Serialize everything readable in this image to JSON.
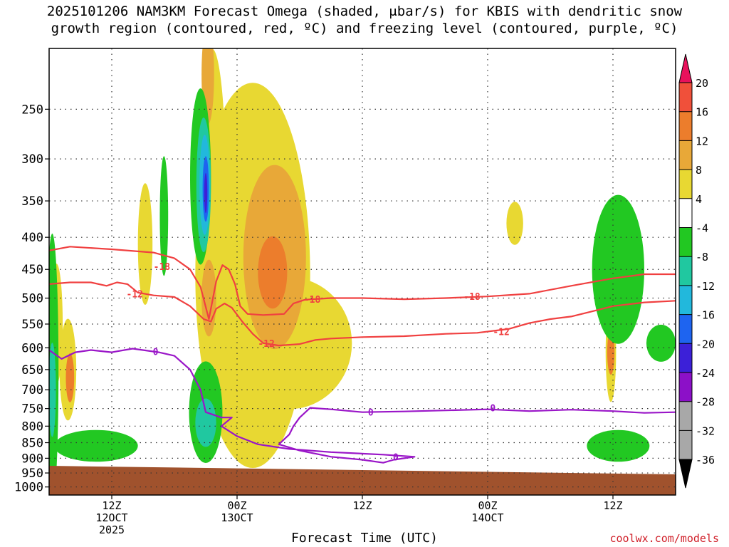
{
  "title": {
    "line1": "2025101206 NAM3KM Forecast Omega (shaded, μbar/s) for KBIS with dendritic snow",
    "line2": "growth region (contoured, red, ºC) and freezing level (contoured, purple, ºC)"
  },
  "credit": "coolwx.com/models",
  "chart_data": {
    "type": "heatmap",
    "xlabel": "Forecast Time (UTC)",
    "ylabel": "",
    "x_ticks": [
      {
        "hour": 6,
        "lines": [
          "12Z",
          "12OCT",
          "2025"
        ]
      },
      {
        "hour": 18,
        "lines": [
          "00Z",
          "13OCT"
        ]
      },
      {
        "hour": 30,
        "lines": [
          "12Z"
        ]
      },
      {
        "hour": 42,
        "lines": [
          "00Z",
          "14OCT"
        ]
      },
      {
        "hour": 54,
        "lines": [
          "12Z"
        ]
      }
    ],
    "xlim_hours": [
      0,
      60
    ],
    "y_scale": "log-pressure",
    "ylim_hPa": [
      1030,
      200
    ],
    "y_ticks": [
      250,
      300,
      350,
      400,
      450,
      500,
      550,
      600,
      650,
      700,
      750,
      800,
      850,
      900,
      950,
      1000
    ],
    "grid": true,
    "colorbar": {
      "labels": [
        "20",
        "16",
        "12",
        "8",
        "4",
        "-4",
        "-8",
        "-12",
        "-16",
        "-20",
        "-24",
        "-28",
        "-32",
        "-36"
      ],
      "colors": [
        "#e8115c",
        "#f0503a",
        "#ec7d2c",
        "#e8a838",
        "#e8d832",
        "#ffffff",
        "#22c822",
        "#20c8a0",
        "#22b8dc",
        "#1e64f0",
        "#3c20d8",
        "#8c10c8",
        "#a8a8a8",
        "#000000"
      ]
    },
    "omega_regions": [
      {
        "level": 4,
        "color": "#e8d832",
        "hour": 15.6,
        "p": 320,
        "rh": 1.3,
        "rp": 140
      },
      {
        "level": 4,
        "color": "#e8d832",
        "hour": 19.5,
        "p": 460,
        "rh": 5.5,
        "rp": 280
      },
      {
        "level": 4,
        "color": "#e8d832",
        "hour": 23,
        "p": 590,
        "rh": 6,
        "rp": 140
      },
      {
        "level": 4,
        "color": "#e8d832",
        "hour": 9.2,
        "p": 410,
        "rh": 0.7,
        "rp": 90
      },
      {
        "level": 4,
        "color": "#e8d832",
        "hour": 1.8,
        "p": 650,
        "rh": 0.8,
        "rp": 120
      },
      {
        "level": 4,
        "color": "#e8d832",
        "hour": 0.7,
        "p": 550,
        "rh": 0.6,
        "rp": 120
      },
      {
        "level": 4,
        "color": "#e8d832",
        "hour": 44.6,
        "p": 380,
        "rh": 0.8,
        "rp": 30
      },
      {
        "level": 4,
        "color": "#e8d832",
        "hour": 53.8,
        "p": 610,
        "rh": 0.5,
        "rp": 110
      },
      {
        "level": 8,
        "color": "#e8a838",
        "hour": 21.6,
        "p": 430,
        "rh": 3,
        "rp": 140
      },
      {
        "level": 8,
        "color": "#e8a838",
        "hour": 15.2,
        "p": 220,
        "rh": 0.6,
        "rp": 40
      },
      {
        "level": 8,
        "color": "#e8a838",
        "hour": 15.3,
        "p": 500,
        "rh": 0.7,
        "rp": 70
      },
      {
        "level": 12,
        "color": "#ec7d2c",
        "hour": 21.4,
        "p": 455,
        "rh": 1.4,
        "rp": 60
      },
      {
        "level": 12,
        "color": "#ec7d2c",
        "hour": 2,
        "p": 670,
        "rh": 0.4,
        "rp": 60
      },
      {
        "level": 12,
        "color": "#ec7d2c",
        "hour": 53.8,
        "p": 610,
        "rh": 0.35,
        "rp": 50
      },
      {
        "level": -4,
        "color": "#22c822",
        "hour": 14.5,
        "p": 320,
        "rh": 1,
        "rp": 100
      },
      {
        "level": -4,
        "color": "#22c822",
        "hour": 15,
        "p": 760,
        "rh": 1.6,
        "rp": 140
      },
      {
        "level": -4,
        "color": "#22c822",
        "hour": 4.5,
        "p": 860,
        "rh": 4,
        "rp": 50
      },
      {
        "level": -4,
        "color": "#22c822",
        "hour": 0.3,
        "p": 650,
        "rh": 0.6,
        "rp": 300
      },
      {
        "level": -4,
        "color": "#22c822",
        "hour": 54.5,
        "p": 450,
        "rh": 2.5,
        "rp": 120
      },
      {
        "level": -4,
        "color": "#22c822",
        "hour": 54.5,
        "p": 860,
        "rh": 3,
        "rp": 50
      },
      {
        "level": -4,
        "color": "#22c822",
        "hour": 11,
        "p": 370,
        "rh": 0.4,
        "rp": 80
      },
      {
        "level": -4,
        "color": "#22c822",
        "hour": 58.6,
        "p": 590,
        "rh": 1.4,
        "rp": 40
      },
      {
        "level": -8,
        "color": "#20c8a0",
        "hour": 14.8,
        "p": 330,
        "rh": 0.7,
        "rp": 80
      },
      {
        "level": -8,
        "color": "#20c8a0",
        "hour": 15,
        "p": 790,
        "rh": 1,
        "rp": 70
      },
      {
        "level": -8,
        "color": "#20c8a0",
        "hour": 0.3,
        "p": 700,
        "rh": 0.35,
        "rp": 120
      },
      {
        "level": -12,
        "color": "#22b8dc",
        "hour": 14.9,
        "p": 330,
        "rh": 0.5,
        "rp": 60
      },
      {
        "level": -20,
        "color": "#1e64f0",
        "hour": 15,
        "p": 335,
        "rh": 0.3,
        "rp": 40
      },
      {
        "level": -24,
        "color": "#3c20d8",
        "hour": 15,
        "p": 340,
        "rh": 0.15,
        "rp": 25
      }
    ],
    "series": [
      {
        "name": "-18",
        "color": "#f04040",
        "labels": [
          [
            10.8,
            445
          ],
          [
            25.2,
            502
          ],
          [
            40.5,
            497
          ]
        ],
        "points": [
          [
            0,
            420
          ],
          [
            2,
            414
          ],
          [
            6,
            418
          ],
          [
            10,
            423
          ],
          [
            12,
            432
          ],
          [
            13.5,
            450
          ],
          [
            14.5,
            480
          ],
          [
            15.3,
            540
          ],
          [
            16,
            470
          ],
          [
            16.6,
            443
          ],
          [
            17.2,
            450
          ],
          [
            17.8,
            475
          ],
          [
            18.3,
            515
          ],
          [
            19,
            530
          ],
          [
            20.5,
            532
          ],
          [
            22.5,
            530
          ],
          [
            23.4,
            510
          ],
          [
            24.5,
            503
          ],
          [
            27,
            500
          ],
          [
            30,
            500
          ],
          [
            34,
            502
          ],
          [
            38,
            500
          ],
          [
            42,
            497
          ],
          [
            46,
            492
          ],
          [
            50,
            478
          ],
          [
            54,
            465
          ],
          [
            57,
            458
          ],
          [
            60,
            458
          ]
        ]
      },
      {
        "name": "-12",
        "color": "#f04040",
        "labels": [
          [
            8.2,
            492
          ],
          [
            20.8,
            590
          ],
          [
            43.3,
            565
          ]
        ],
        "points": [
          [
            0,
            475
          ],
          [
            2,
            472
          ],
          [
            4,
            472
          ],
          [
            5.5,
            478
          ],
          [
            6.5,
            472
          ],
          [
            7.5,
            475
          ],
          [
            8.5,
            490
          ],
          [
            10,
            495
          ],
          [
            12,
            498
          ],
          [
            13.5,
            515
          ],
          [
            14.8,
            540
          ],
          [
            15.5,
            545
          ],
          [
            16,
            520
          ],
          [
            16.8,
            510
          ],
          [
            17.5,
            518
          ],
          [
            18.5,
            545
          ],
          [
            19.5,
            570
          ],
          [
            20.5,
            590
          ],
          [
            22,
            595
          ],
          [
            24,
            592
          ],
          [
            25.5,
            583
          ],
          [
            27,
            580
          ],
          [
            30,
            577
          ],
          [
            34,
            575
          ],
          [
            38,
            570
          ],
          [
            41,
            568
          ],
          [
            44,
            560
          ],
          [
            46,
            548
          ],
          [
            48,
            540
          ],
          [
            50,
            535
          ],
          [
            52,
            525
          ],
          [
            54,
            515
          ],
          [
            57,
            508
          ],
          [
            60,
            505
          ]
        ]
      },
      {
        "name": "0",
        "color": "#9a16c8",
        "labels": [
          [
            10.2,
            608
          ],
          [
            30.8,
            760
          ],
          [
            42.5,
            748
          ],
          [
            33.2,
            895
          ]
        ],
        "points": [
          [
            0,
            605
          ],
          [
            1.2,
            625
          ],
          [
            2.5,
            610
          ],
          [
            4,
            605
          ],
          [
            6,
            610
          ],
          [
            8,
            602
          ],
          [
            10.5,
            610
          ],
          [
            12,
            618
          ],
          [
            13.5,
            650
          ],
          [
            14.5,
            700
          ],
          [
            15,
            760
          ],
          [
            16.5,
            775
          ],
          [
            17.5,
            775
          ],
          [
            16.5,
            800
          ],
          [
            18,
            830
          ],
          [
            20,
            855
          ],
          [
            23,
            870
          ],
          [
            27,
            880
          ],
          [
            32,
            888
          ],
          [
            35,
            895
          ],
          [
            34,
            900
          ],
          [
            33,
            905
          ],
          [
            32,
            915
          ],
          [
            30,
            905
          ],
          [
            27,
            895
          ],
          [
            24,
            875
          ],
          [
            22,
            855
          ],
          [
            23,
            825
          ],
          [
            23.4,
            800
          ],
          [
            24,
            775
          ],
          [
            25,
            748
          ],
          [
            27,
            752
          ],
          [
            30,
            760
          ],
          [
            34,
            758
          ],
          [
            38,
            755
          ],
          [
            42,
            752
          ],
          [
            46,
            757
          ],
          [
            50,
            753
          ],
          [
            54,
            757
          ],
          [
            57,
            762
          ],
          [
            60,
            760
          ]
        ]
      }
    ],
    "terrain": {
      "label": "",
      "color": "#a0522d",
      "surface_pressure_hPa": 940
    }
  }
}
